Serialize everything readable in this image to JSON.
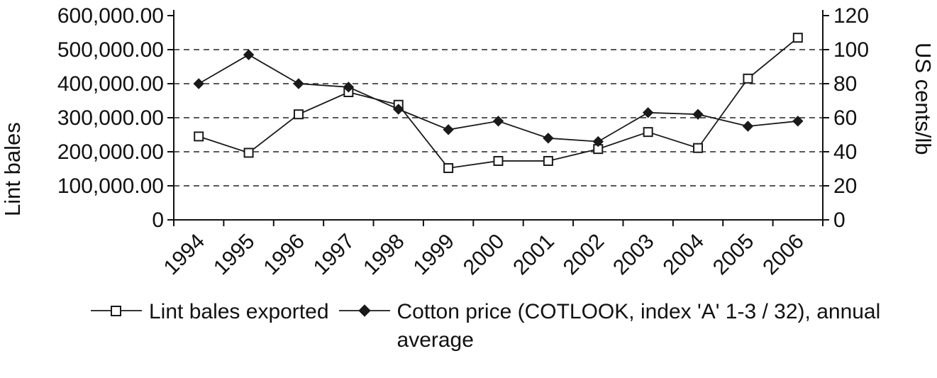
{
  "chart_data": {
    "type": "line",
    "title": "",
    "categories": [
      "1994",
      "1995",
      "1996",
      "1997",
      "1998",
      "1999",
      "2000",
      "2001",
      "2002",
      "2003",
      "2004",
      "2005",
      "2006"
    ],
    "ylabel_left": "Lint bales",
    "ylabel_right": "US cents/lb",
    "y_left": {
      "min": 0,
      "max": 600000,
      "tick": 100000,
      "tick_labels": [
        "0",
        "100,000.00",
        "200,000.00",
        "300,000.00",
        "400,000.00",
        "500,000.00",
        "600,000.00"
      ]
    },
    "y_right": {
      "min": 0,
      "max": 120,
      "tick": 20,
      "tick_labels": [
        "0",
        "20",
        "40",
        "60",
        "80",
        "100",
        "120"
      ]
    },
    "grid": "dashed-horizontal",
    "legend_position": "bottom",
    "line_color": "#1a1a1a",
    "series": [
      {
        "name": "Lint bales exported",
        "axis": "left",
        "marker": "open-square",
        "values": [
          245000,
          197000,
          310000,
          375000,
          338000,
          152000,
          173000,
          173000,
          208000,
          258000,
          211000,
          415000,
          535000
        ]
      },
      {
        "name": "Cotton price (COTLOOK, index 'A' 1-3 / 32), annual average",
        "axis": "right",
        "marker": "filled-diamond",
        "values": [
          80,
          97,
          80,
          78,
          65,
          53,
          58,
          48,
          46,
          63,
          62,
          55,
          58
        ]
      }
    ]
  }
}
